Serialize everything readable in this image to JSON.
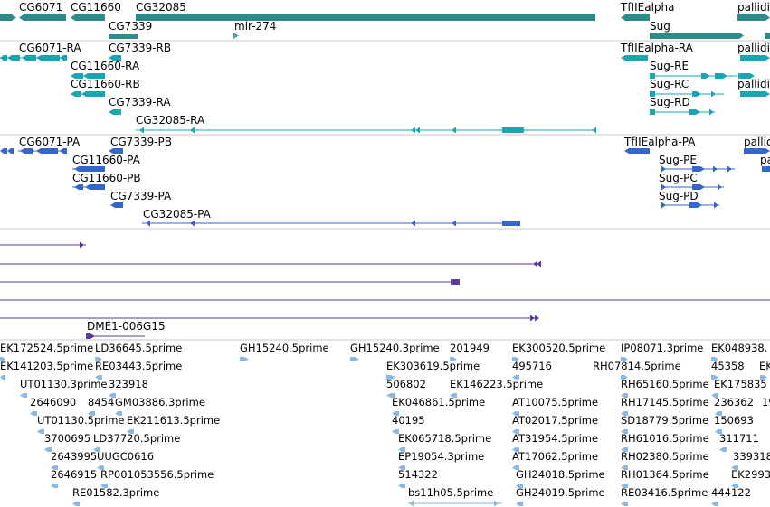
{
  "colors": {
    "gene": "#2e8b88",
    "transcript": "#1aa6b0",
    "protein": "#3566c8",
    "alignment": "#5a3a9a",
    "est": "#8ab8e0",
    "divider": "#c8c8c8"
  },
  "tracks": {
    "genes": {
      "labels": [
        "CG6071",
        "CG11660",
        "CG32085",
        "CG7339",
        "mir-274",
        "TfIIEalpha",
        "Sug",
        "pallidi"
      ]
    },
    "transcripts": {
      "labels": [
        "CG6071-RA",
        "CG7339-RB",
        "CG11660-RA",
        "CG11660-RB",
        "CG7339-RA",
        "CG32085-RA",
        "TfIIEalpha-RA",
        "Sug-RE",
        "Sug-RC",
        "Sug-RD",
        "pallidi",
        "pallidi"
      ]
    },
    "proteins": {
      "labels": [
        "CG6071-PA",
        "CG7339-PB",
        "CG11660-PA",
        "CG11660-PB",
        "CG7339-PA",
        "CG32085-PA",
        "TfIIEalpha-PA",
        "Sug-PE",
        "Sug-PC",
        "Sug-PD",
        "pallidi",
        "pa"
      ]
    },
    "alignments": {
      "labels": [
        "DME1-006G15"
      ]
    },
    "ests": {
      "labels": [
        "EK172524.5prime",
        "LD36645.5prime",
        "GH15240.5prime",
        "GH15240.3prime",
        "201949",
        "EK300520.5prime",
        "IP08071.3prime",
        "EK048938.",
        "EK141203.5prime",
        "RE03443.5prime",
        "EK303619.5prime",
        "495716",
        "RH07814.5prime",
        "45358",
        "EK",
        "UT01130.3prime",
        "323918",
        "506802",
        "EK146223.5prime",
        "RH65160.5prime",
        "EK175835",
        "2646090",
        "8454",
        "GM03886.3prime",
        "EK046861.5prime",
        "AT10075.5prime",
        "RH17145.5prime",
        "236362",
        "19",
        "UT01130.5prime",
        "EK211613.5prime",
        "40195",
        "AT02017.5prime",
        "SD18779.5prime",
        "150693",
        "3700695",
        "LD37720.5prime",
        "EK065718.5prime",
        "AT31954.5prime",
        "RH61016.5prime",
        "311711",
        "2643995",
        "UUGC0616",
        "EP19054.3prime",
        "AT17062.5prime",
        "RH02380.5prime",
        "339318",
        "2646915",
        "RP001053556.5prime",
        "514322",
        "GH24018.5prime",
        "RH01364.5prime",
        "EK2993",
        "RE01582.3prime",
        "bs11h05.5prime",
        "GH24019.5prime",
        "RE03416.5prime",
        "444122"
      ]
    }
  }
}
